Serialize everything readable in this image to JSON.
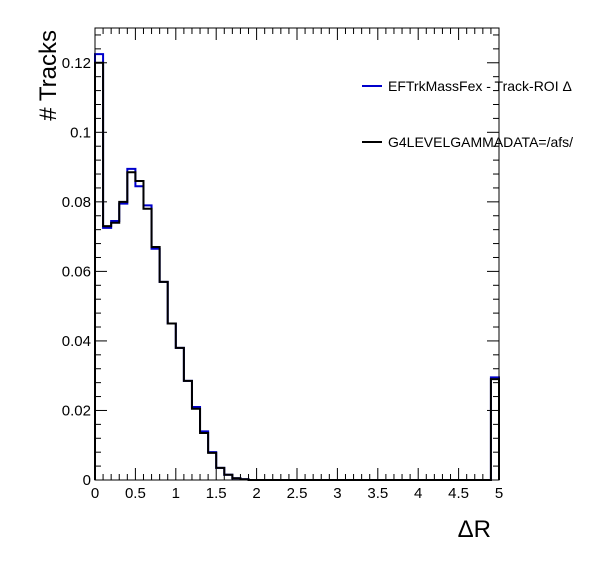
{
  "chart_data": {
    "type": "line",
    "title": "",
    "xlabel": "ΔR",
    "ylabel": "# Tracks",
    "xlim": [
      0,
      5
    ],
    "ylim": [
      0,
      0.13
    ],
    "x_ticks": [
      "0",
      "0.5",
      "1",
      "1.5",
      "2",
      "2.5",
      "3",
      "3.5",
      "4",
      "4.5",
      "5"
    ],
    "y_ticks": [
      "0",
      "0.02",
      "0.04",
      "0.06",
      "0.08",
      "0.1",
      "0.12"
    ],
    "bin_width": 0.1,
    "grid": false,
    "legend_position": "top-right",
    "series": [
      {
        "name": "EFTrkMassFex - Track-ROI Δ",
        "color": "#0000cc",
        "values": [
          0.1225,
          0.0725,
          0.0745,
          0.0795,
          0.0895,
          0.0845,
          0.079,
          0.0665,
          0.057,
          0.045,
          0.038,
          0.0285,
          0.021,
          0.014,
          0.008,
          0.0035,
          0.0015,
          0.0005,
          0.0002,
          0,
          0,
          0,
          0,
          0,
          0,
          0,
          0,
          0,
          0,
          0,
          0,
          0,
          0,
          0,
          0,
          0,
          0,
          0,
          0,
          0,
          0,
          0,
          0,
          0,
          0,
          0,
          0,
          0,
          0,
          0.0295
        ]
      },
      {
        "name": "G4LEVELGAMMADATA=/afs/",
        "color": "#000000",
        "values": [
          0.12,
          0.073,
          0.074,
          0.08,
          0.0885,
          0.086,
          0.078,
          0.067,
          0.057,
          0.045,
          0.038,
          0.0285,
          0.0205,
          0.0135,
          0.0078,
          0.0035,
          0.0015,
          0.0005,
          0.0002,
          0,
          0,
          0,
          0,
          0,
          0,
          0,
          0,
          0,
          0,
          0,
          0,
          0,
          0,
          0,
          0,
          0,
          0,
          0,
          0,
          0,
          0,
          0,
          0,
          0,
          0,
          0,
          0,
          0,
          0,
          0.029
        ]
      }
    ]
  }
}
